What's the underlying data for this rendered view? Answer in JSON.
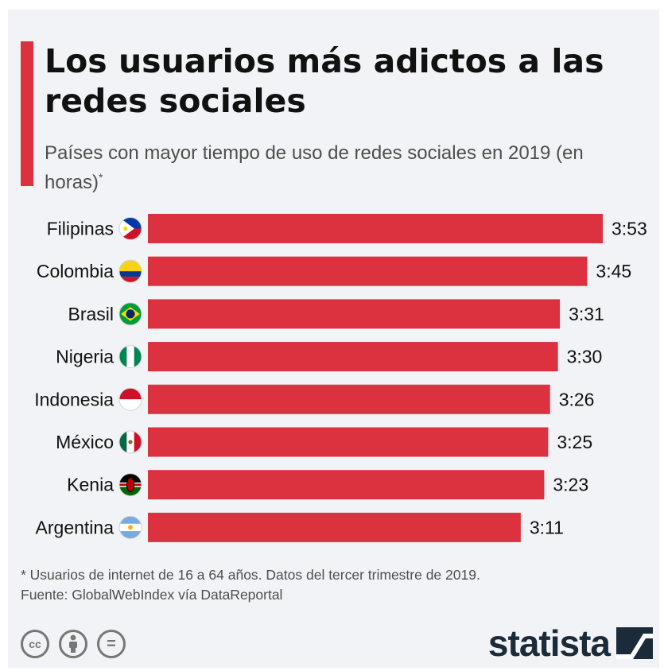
{
  "header": {
    "title": "Los usuarios más adictos a las redes sociales",
    "subtitle": "Países con mayor tiempo de uso de redes sociales en 2019 (en horas)",
    "subtitle_mark": "*"
  },
  "chart_data": {
    "type": "bar",
    "orientation": "horizontal",
    "title": "Los usuarios más adictos a las redes sociales",
    "subtitle": "Países con mayor tiempo de uso de redes sociales en 2019 (en horas)",
    "categories": [
      "Filipinas",
      "Colombia",
      "Brasil",
      "Nigeria",
      "Indonesia",
      "México",
      "Kenia",
      "Argentina"
    ],
    "labels": [
      "3:53",
      "3:45",
      "3:31",
      "3:30",
      "3:26",
      "3:25",
      "3:23",
      "3:11"
    ],
    "values": [
      3.883,
      3.75,
      3.517,
      3.5,
      3.433,
      3.417,
      3.383,
      3.183
    ],
    "flags": [
      "philippines-flag-icon",
      "colombia-flag-icon",
      "brazil-flag-icon",
      "nigeria-flag-icon",
      "indonesia-flag-icon",
      "mexico-flag-icon",
      "kenya-flag-icon",
      "argentina-flag-icon"
    ],
    "bar_color": "#dc3240",
    "xlim": [
      0,
      3.883
    ],
    "grid": false,
    "legend": "none"
  },
  "footer": {
    "note": "* Usuarios de internet de 16 a 64 años. Datos del tercer trimestre de 2019.",
    "source": "Fuente: GlobalWebIndex vía DataReportal",
    "license_icons": [
      "cc-icon",
      "attribution-icon",
      "no-derivatives-icon"
    ],
    "license_cc": "cc",
    "license_nd": "=",
    "brand": "statista"
  },
  "colors": {
    "accent": "#dc3240",
    "background": "#f1f3f6",
    "title": "#111111",
    "text": "#4e4e4e",
    "brand": "#1c2b3a"
  }
}
